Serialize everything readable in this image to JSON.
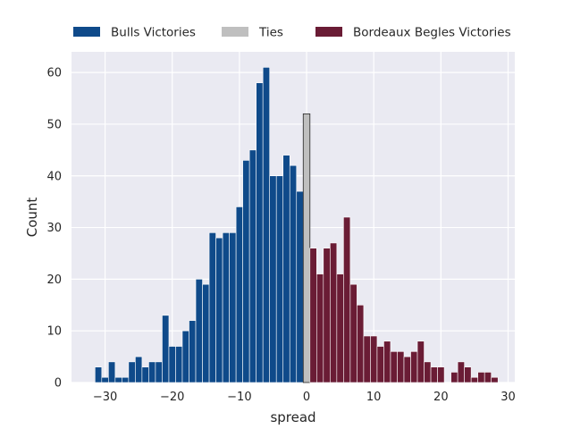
{
  "chart_data": {
    "type": "bar",
    "title": "",
    "xlabel": "spread",
    "ylabel": "Count",
    "xlim": [
      -35,
      31
    ],
    "ylim": [
      0,
      64
    ],
    "xticks": [
      -30,
      -20,
      -10,
      0,
      10,
      20,
      30
    ],
    "yticks": [
      0,
      10,
      20,
      30,
      40,
      50,
      60
    ],
    "xtick_labels": [
      "−30",
      "−20",
      "−10",
      "0",
      "10",
      "20",
      "30"
    ],
    "ytick_labels": [
      "0",
      "10",
      "20",
      "30",
      "40",
      "50",
      "60"
    ],
    "grid": true,
    "legend_position": "top",
    "series": [
      {
        "name": "Bulls Victories",
        "color": "#0f4a8a",
        "x": [
          -31,
          -30,
          -29,
          -28,
          -27,
          -26,
          -25,
          -24,
          -23,
          -22,
          -21,
          -20,
          -19,
          -18,
          -17,
          -16,
          -15,
          -14,
          -13,
          -12,
          -11,
          -10,
          -9,
          -8,
          -7,
          -6,
          -5,
          -4,
          -3,
          -2,
          -1
        ],
        "values": [
          3,
          1,
          4,
          1,
          1,
          4,
          5,
          3,
          4,
          4,
          13,
          7,
          7,
          10,
          12,
          20,
          19,
          29,
          28,
          29,
          29,
          34,
          43,
          45,
          58,
          61,
          40,
          40,
          44,
          42,
          37
        ]
      },
      {
        "name": "Ties",
        "color": "#bfbfbf",
        "x": [
          0
        ],
        "values": [
          52
        ]
      },
      {
        "name": "Bordeaux Begles Victories",
        "color": "#6a1c35",
        "x": [
          1,
          2,
          3,
          4,
          5,
          6,
          7,
          8,
          9,
          10,
          11,
          12,
          13,
          14,
          15,
          16,
          17,
          18,
          19,
          20,
          22,
          23,
          24,
          25,
          26,
          27,
          28
        ],
        "values": [
          26,
          21,
          26,
          27,
          21,
          32,
          19,
          15,
          9,
          9,
          7,
          8,
          6,
          6,
          5,
          6,
          8,
          4,
          3,
          3,
          2,
          4,
          3,
          1,
          2,
          2,
          1
        ]
      }
    ]
  }
}
